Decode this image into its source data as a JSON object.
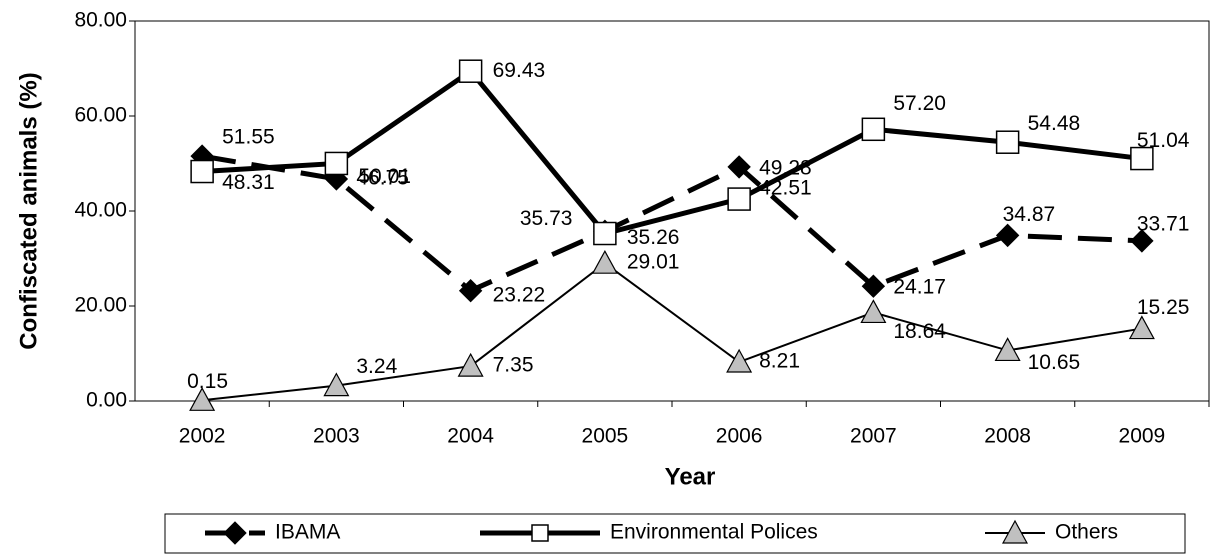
{
  "chart_data": {
    "type": "line",
    "x_label": "Year",
    "y_label": "Confiscated animals (%)",
    "categories": [
      "2002",
      "2003",
      "2004",
      "2005",
      "2006",
      "2007",
      "2008",
      "2009"
    ],
    "ylim": [
      0,
      80
    ],
    "yticks": [
      {
        "value": 0,
        "label": "0.00"
      },
      {
        "value": 20,
        "label": "20.00"
      },
      {
        "value": 40,
        "label": "40.00"
      },
      {
        "value": 60,
        "label": "60.00"
      },
      {
        "value": 80,
        "label": "80.00"
      }
    ],
    "grid": false,
    "legend": "bottom",
    "series": [
      {
        "name": "IBAMA",
        "color": "#000000",
        "marker": "diamond",
        "dashed": true,
        "values": [
          51.55,
          46.75,
          23.22,
          35.73,
          49.28,
          24.17,
          34.87,
          33.71
        ],
        "value_labels": [
          "51.55",
          "46.75",
          "23.22",
          "35.73",
          "49.28",
          "24.17",
          "34.87",
          "33.71"
        ]
      },
      {
        "name": "Environmental Polices",
        "color": "#ffffff",
        "marker": "square",
        "dashed": false,
        "values": [
          48.31,
          50.01,
          69.43,
          35.26,
          42.51,
          57.2,
          54.48,
          51.04
        ],
        "value_labels": [
          "48.31",
          "50.01",
          "69.43",
          "35.26",
          "42.51",
          "57.20",
          "54.48",
          "51.04"
        ]
      },
      {
        "name": "Others",
        "color": "#c0c0c0",
        "marker": "triangle",
        "dashed": false,
        "values": [
          0.15,
          3.24,
          7.35,
          29.01,
          8.21,
          18.64,
          10.65,
          15.25
        ],
        "value_labels": [
          "0.15",
          "3.24",
          "7.35",
          "29.01",
          "8.21",
          "18.64",
          "10.65",
          "15.25"
        ]
      }
    ]
  }
}
